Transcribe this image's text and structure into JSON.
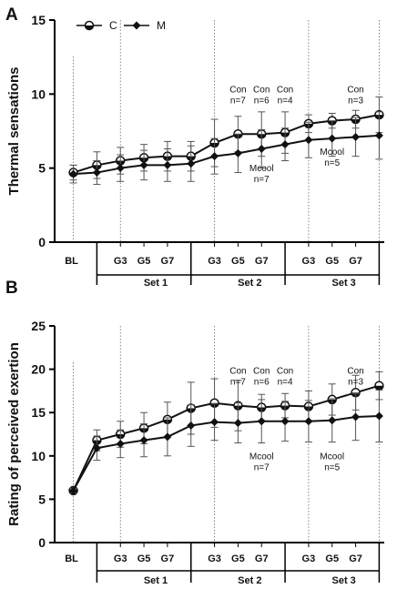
{
  "figure": {
    "legend": [
      {
        "label": "C",
        "marker": "open-circle"
      },
      {
        "label": "M",
        "marker": "filled-diamond"
      }
    ],
    "colors": {
      "line": "#111111",
      "error": "#555555",
      "axis": "#000000",
      "divider": "#666666"
    }
  },
  "chart_data": [
    {
      "type": "line",
      "panel": "A",
      "ylabel": "Thermal sensations",
      "ylim": [
        0,
        15
      ],
      "yticks": [
        0,
        5,
        10,
        15
      ],
      "x_points": [
        "BL",
        "",
        "G3",
        "G5",
        "G7",
        "",
        "G3",
        "G5",
        "G7",
        "",
        "G3",
        "G5",
        "G7",
        ""
      ],
      "x_tick_labels": [
        "BL",
        "G3",
        "G5",
        "G7",
        "G3",
        "G5",
        "G7",
        "G3",
        "G5",
        "G7"
      ],
      "groups": [
        "Set 1",
        "Set 2",
        "Set 3"
      ],
      "series": [
        {
          "name": "C",
          "values": [
            4.7,
            5.2,
            5.5,
            5.7,
            5.8,
            5.8,
            6.7,
            7.3,
            7.3,
            7.4,
            8.0,
            8.2,
            8.3,
            8.6
          ],
          "errors": [
            0.5,
            0.9,
            0.9,
            0.9,
            1.0,
            1.0,
            1.6,
            1.2,
            1.5,
            1.4,
            0.6,
            0.5,
            0.6,
            1.2
          ]
        },
        {
          "name": "M",
          "values": [
            4.6,
            4.7,
            5.0,
            5.2,
            5.2,
            5.3,
            5.8,
            6.0,
            6.3,
            6.6,
            6.9,
            7.0,
            7.1,
            7.2
          ],
          "errors": [
            0.6,
            0.8,
            0.9,
            1.0,
            1.1,
            1.2,
            1.2,
            1.3,
            1.3,
            1.1,
            1.2,
            1.2,
            1.3,
            1.6
          ]
        }
      ],
      "annotations": [
        {
          "text": "Con",
          "text2": "n=7",
          "x": 7,
          "y": 10.1
        },
        {
          "text": "Con",
          "text2": "n=6",
          "x": 8,
          "y": 10.1
        },
        {
          "text": "Con",
          "text2": "n=4",
          "x": 9,
          "y": 10.1
        },
        {
          "text": "Con",
          "text2": "n=3",
          "x": 12,
          "y": 10.1
        },
        {
          "text": "Mcool",
          "text2": "n=7",
          "x": 8,
          "y": 4.8
        },
        {
          "text": "Mcool",
          "text2": "n=5",
          "x": 11,
          "y": 5.9
        }
      ]
    },
    {
      "type": "line",
      "panel": "B",
      "ylabel": "Rating of perceived exertion",
      "ylim": [
        0,
        25
      ],
      "yticks": [
        0,
        5,
        10,
        15,
        20,
        25
      ],
      "x_points": [
        "BL",
        "",
        "G3",
        "G5",
        "G7",
        "",
        "G3",
        "G5",
        "G7",
        "",
        "G3",
        "G5",
        "G7",
        ""
      ],
      "x_tick_labels": [
        "BL",
        "G3",
        "G5",
        "G7",
        "G3",
        "G5",
        "G7",
        "G3",
        "G5",
        "G7"
      ],
      "groups": [
        "Set 1",
        "Set 2",
        "Set 3"
      ],
      "series": [
        {
          "name": "C",
          "values": [
            6.0,
            11.8,
            12.5,
            13.2,
            14.2,
            15.5,
            16.1,
            15.8,
            15.6,
            15.8,
            15.7,
            16.5,
            17.3,
            18.1
          ],
          "errors": [
            0.3,
            1.2,
            1.5,
            1.8,
            2.0,
            3.0,
            2.8,
            2.9,
            1.5,
            1.4,
            1.8,
            1.8,
            2.0,
            1.6
          ]
        },
        {
          "name": "M",
          "values": [
            6.0,
            10.9,
            11.4,
            11.8,
            12.2,
            13.5,
            13.9,
            13.8,
            14.0,
            14.0,
            14.0,
            14.1,
            14.5,
            14.6
          ],
          "errors": [
            0.3,
            1.4,
            1.6,
            1.9,
            2.2,
            2.4,
            2.1,
            2.3,
            2.5,
            2.3,
            2.4,
            2.5,
            2.7,
            3.0
          ]
        }
      ],
      "annotations": [
        {
          "text": "Con",
          "text2": "n=7",
          "x": 7,
          "y": 19.5
        },
        {
          "text": "Con",
          "text2": "n=6",
          "x": 8,
          "y": 19.5
        },
        {
          "text": "Con",
          "text2": "n=4",
          "x": 9,
          "y": 19.5
        },
        {
          "text": "Con",
          "text2": "n=3",
          "x": 12,
          "y": 19.5
        },
        {
          "text": "Mcool",
          "text2": "n=7",
          "x": 8,
          "y": 9.6
        },
        {
          "text": "Mcool",
          "text2": "n=5",
          "x": 11,
          "y": 9.6
        }
      ]
    }
  ]
}
